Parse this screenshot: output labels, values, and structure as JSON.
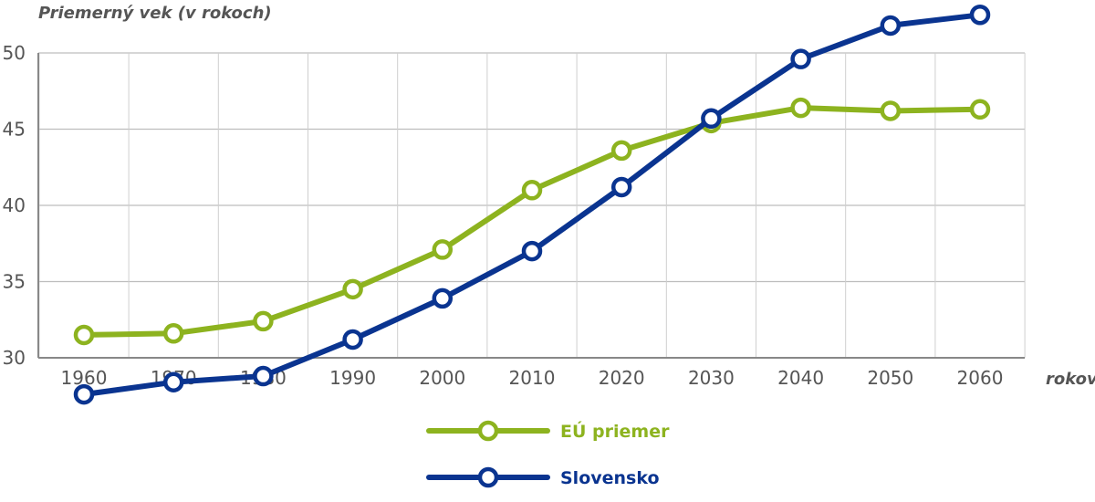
{
  "chart_data": {
    "type": "line",
    "ylabel": "Priemerný vek (v rokoch)",
    "xlabel": "rokov",
    "x": [
      1960,
      1970,
      1980,
      1990,
      2000,
      2010,
      2020,
      2030,
      2040,
      2050,
      2060
    ],
    "xticks": [
      "1960",
      "1970",
      "1980",
      "1990",
      "2000",
      "2010",
      "2020",
      "2030",
      "2040",
      "2050",
      "2060"
    ],
    "yticks": [
      "30",
      "35",
      "40",
      "45",
      "50"
    ],
    "ylim": [
      30,
      50
    ],
    "grid": true,
    "legend_position": "bottom",
    "series": [
      {
        "name": "EÚ priemer",
        "color": "#8db31f",
        "values": [
          31.5,
          31.6,
          32.4,
          34.5,
          37.1,
          41.0,
          43.6,
          45.4,
          46.4,
          46.2,
          46.3
        ]
      },
      {
        "name": "Slovensko",
        "color": "#0a3490",
        "values": [
          27.6,
          28.4,
          28.8,
          31.2,
          33.9,
          37.0,
          41.2,
          45.7,
          49.6,
          51.8,
          52.5
        ]
      }
    ]
  }
}
